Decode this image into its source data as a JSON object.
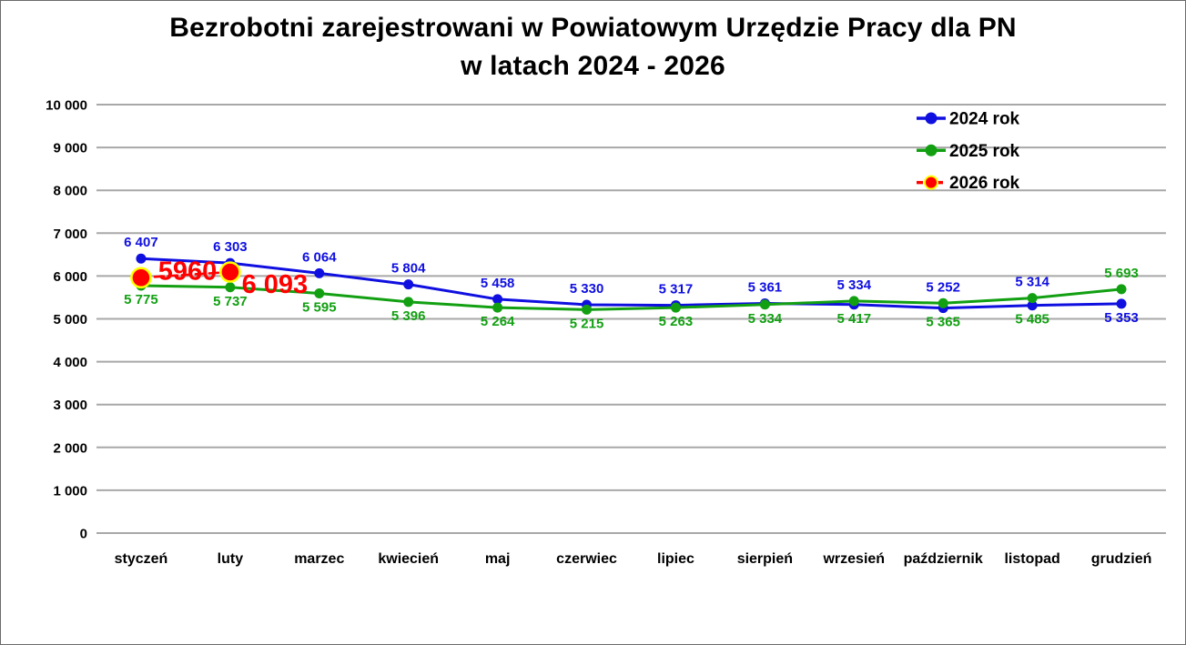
{
  "title": {
    "line1": "Bezrobotni zarejestrowani w Powiatowym Urzędzie Pracy dla PN",
    "line2": "w latach 2024 - 2026"
  },
  "chart_data": {
    "type": "line",
    "title": "Bezrobotni zarejestrowani w Powiatowym Urzędzie Pracy dla PN w latach 2024 - 2026",
    "categories": [
      "styczeń",
      "luty",
      "marzec",
      "kwiecień",
      "maj",
      "czerwiec",
      "lipiec",
      "sierpień",
      "wrzesień",
      "październik",
      "listopad",
      "grudzień"
    ],
    "series": [
      {
        "name": "2024 rok",
        "color": "#0F0FE0",
        "values": [
          6407,
          6303,
          6064,
          5804,
          5458,
          5330,
          5317,
          5361,
          5334,
          5252,
          5314,
          5353
        ],
        "labels": [
          "6 407",
          "6 303",
          "6 064",
          "5 804",
          "5 458",
          "5 330",
          "5 317",
          "5 361",
          "5 334",
          "5 252",
          "5 314",
          "5 353"
        ],
        "dashed": false,
        "label_placement": "above",
        "label_overrides": {
          "11": "below"
        }
      },
      {
        "name": "2025 rok",
        "color": "#12A012",
        "values": [
          5775,
          5737,
          5595,
          5396,
          5264,
          5215,
          5263,
          5334,
          5417,
          5365,
          5485,
          5693
        ],
        "labels": [
          "5 775",
          "5 737",
          "5 595",
          "5 396",
          "5 264",
          "5 215",
          "5 263",
          "5 334",
          "5 417",
          "5 365",
          "5 485",
          "5 693"
        ],
        "dashed": false,
        "label_placement": "below",
        "label_overrides": {
          "11": "above"
        }
      },
      {
        "name": "2026 rok",
        "color": "#FF0000",
        "values": [
          5960,
          6093,
          null,
          null,
          null,
          null,
          null,
          null,
          null,
          null,
          null,
          null
        ],
        "labels": [
          "5960",
          "6 093"
        ],
        "dashed": true,
        "big_labels": true,
        "marker_ring_color": "#FFFF00",
        "label_offsets": [
          {
            "dx": 51,
            "dy": 2
          },
          {
            "dx": 49,
            "dy": 23
          }
        ]
      }
    ],
    "ylim": [
      0,
      10000
    ],
    "ytick_step": 1000,
    "ytick_labels": [
      "0",
      "1 000",
      "2 000",
      "3 000",
      "4 000",
      "5 000",
      "6 000",
      "7 000",
      "8 000",
      "9 000",
      "10 000"
    ],
    "grid": true,
    "legend_position": "top-right",
    "legend_items": [
      "2024 rok",
      "2025 rok",
      "2026 rok"
    ],
    "xlabel": "",
    "ylabel": ""
  },
  "colors": {
    "gridline": "#A8A8A8",
    "text": "#000000",
    "background": "#FFFFFF",
    "border": "#6B6B6B"
  }
}
